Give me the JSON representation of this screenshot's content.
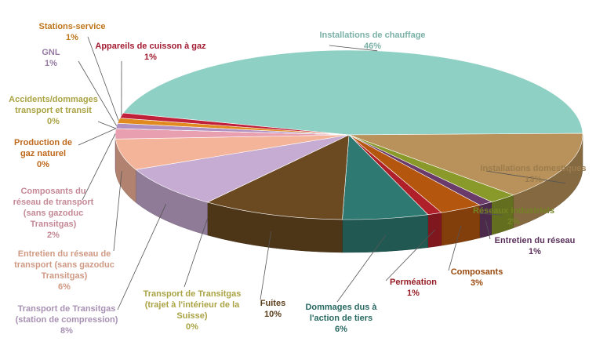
{
  "chart_data": {
    "type": "pie",
    "categories": [
      "Installations de chauffage",
      "Installations domestiques",
      "Réseaux industriels",
      "Entretien du réseau",
      "Composants",
      "Perméation",
      "Dommages dus à l'action de tiers",
      "Fuites",
      "Transport de Transitgas (trajet à l'intérieur de la Suisse)",
      "Transport de Transitgas (station de compression)",
      "Entretien du réseau de transport (sans gazoduc Transitgas)",
      "Composants du réseau de transport (sans gazoduc Transitgas)",
      "Production de gaz naturel",
      "Accidents/dommages transport et transit",
      "GNL",
      "Stations-service",
      "Appareils de cuisson à gaz"
    ],
    "values": [
      46,
      13,
      2,
      1,
      3,
      1,
      6,
      10,
      0,
      8,
      6,
      2,
      0,
      0,
      1,
      1,
      1
    ],
    "value_labels": [
      "46%",
      "13%",
      "2%",
      "1%",
      "3%",
      "1%",
      "6%",
      "10%",
      "0%",
      "8%",
      "6%",
      "2%",
      "0%",
      "0%",
      "1%",
      "1%",
      "1%"
    ],
    "colors": [
      "#8fd0c4",
      "#b8925a",
      "#8a9a2a",
      "#6a3a6a",
      "#b5560f",
      "#b0202a",
      "#2e7a72",
      "#6b4a22",
      "#c8c050",
      "#c6abd2",
      "#f4b49a",
      "#e8a0b0",
      "#e07a20",
      "#c8c050",
      "#b090c0",
      "#e08a20",
      "#c0203a"
    ]
  }
}
